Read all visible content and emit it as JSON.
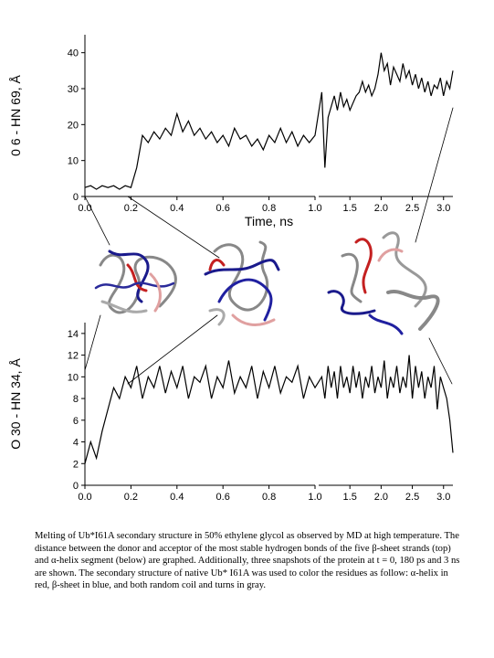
{
  "chart_data": [
    {
      "type": "line",
      "y_label": "0 6 - HN 69, Å",
      "x_label": "Time, ns",
      "color": "#000000",
      "xlim": [
        0,
        3.15
      ],
      "x_break": 1.0,
      "ylim": [
        0,
        45
      ],
      "xticks": [
        {
          "value": 0,
          "label": "0.0"
        },
        0.2,
        0.4,
        0.6,
        0.8,
        {
          "value": 1,
          "label": "1.0"
        },
        1.5,
        {
          "value": 2,
          "label": "2.0"
        },
        2.5,
        {
          "value": 3,
          "label": "3.0"
        }
      ],
      "yticks": [
        0,
        10,
        20,
        30,
        40
      ],
      "x": [
        0,
        0.025,
        0.05,
        0.075,
        0.1,
        0.125,
        0.15,
        0.175,
        0.2,
        0.225,
        0.25,
        0.275,
        0.3,
        0.325,
        0.35,
        0.375,
        0.4,
        0.425,
        0.45,
        0.475,
        0.5,
        0.525,
        0.55,
        0.575,
        0.6,
        0.625,
        0.65,
        0.675,
        0.7,
        0.725,
        0.75,
        0.775,
        0.8,
        0.825,
        0.85,
        0.875,
        0.9,
        0.925,
        0.95,
        0.975,
        1.0,
        1.05,
        1.1,
        1.15,
        1.2,
        1.25,
        1.3,
        1.35,
        1.4,
        1.45,
        1.5,
        1.55,
        1.6,
        1.65,
        1.7,
        1.75,
        1.8,
        1.85,
        1.9,
        1.95,
        2.0,
        2.05,
        2.1,
        2.15,
        2.2,
        2.25,
        2.3,
        2.35,
        2.4,
        2.45,
        2.5,
        2.55,
        2.6,
        2.65,
        2.7,
        2.75,
        2.8,
        2.85,
        2.9,
        2.95,
        3.0,
        3.05,
        3.1,
        3.15
      ],
      "values": [
        2.5,
        3,
        2,
        3,
        2.5,
        3,
        2,
        3,
        2.5,
        8,
        17,
        15,
        18,
        16,
        19,
        17,
        23,
        18,
        21,
        17,
        19,
        16,
        18,
        15,
        17,
        14,
        19,
        16,
        17,
        14,
        16,
        13,
        17,
        15,
        19,
        15,
        18,
        14,
        17,
        15,
        17,
        29,
        8,
        22,
        25,
        28,
        24,
        29,
        25,
        27,
        24,
        26,
        28,
        29,
        32,
        29,
        31,
        28,
        30,
        34,
        40,
        35,
        37,
        31,
        36,
        34,
        32,
        37,
        33,
        35,
        31,
        34,
        30,
        33,
        29,
        32,
        28,
        31,
        30,
        33,
        28,
        32,
        30,
        35
      ]
    },
    {
      "type": "line",
      "y_label": "O 30 - HN 34, Å",
      "color": "#000000",
      "xlim": [
        0,
        3.15
      ],
      "x_break": 1.0,
      "ylim": [
        0,
        15
      ],
      "xticks": [
        {
          "value": 0,
          "label": "0.0"
        },
        0.2,
        0.4,
        0.6,
        0.8,
        {
          "value": 1,
          "label": "1.0"
        },
        1.5,
        {
          "value": 2,
          "label": "2.0"
        },
        2.5,
        {
          "value": 3,
          "label": "3.0"
        }
      ],
      "yticks": [
        0,
        2,
        4,
        6,
        8,
        10,
        12,
        14
      ],
      "x": [
        0,
        0.025,
        0.05,
        0.075,
        0.1,
        0.125,
        0.15,
        0.175,
        0.2,
        0.225,
        0.25,
        0.275,
        0.3,
        0.325,
        0.35,
        0.375,
        0.4,
        0.425,
        0.45,
        0.475,
        0.5,
        0.525,
        0.55,
        0.575,
        0.6,
        0.625,
        0.65,
        0.675,
        0.7,
        0.725,
        0.75,
        0.775,
        0.8,
        0.825,
        0.85,
        0.875,
        0.9,
        0.925,
        0.95,
        0.975,
        1.0,
        1.05,
        1.1,
        1.15,
        1.2,
        1.25,
        1.3,
        1.35,
        1.4,
        1.45,
        1.5,
        1.55,
        1.6,
        1.65,
        1.7,
        1.75,
        1.8,
        1.85,
        1.9,
        1.95,
        2.0,
        2.05,
        2.1,
        2.15,
        2.2,
        2.25,
        2.3,
        2.35,
        2.4,
        2.45,
        2.5,
        2.55,
        2.6,
        2.65,
        2.7,
        2.75,
        2.8,
        2.85,
        2.9,
        2.95,
        3.0,
        3.05,
        3.1,
        3.15
      ],
      "values": [
        2,
        4,
        2.5,
        5,
        7,
        9,
        8,
        10,
        9,
        11,
        8,
        10,
        9,
        11,
        8.5,
        10.5,
        9,
        11,
        8,
        10,
        9.5,
        11,
        8,
        10,
        9,
        11.5,
        8.5,
        10,
        9,
        11,
        8,
        10.5,
        9,
        11,
        8.5,
        10,
        9.5,
        11,
        8,
        10,
        9,
        10,
        8,
        11,
        9,
        10.5,
        8,
        11,
        9,
        10,
        8.5,
        11,
        9,
        10.5,
        8,
        10,
        9,
        11,
        8.5,
        10,
        9,
        11.5,
        8,
        10,
        9,
        11,
        8.5,
        10,
        9,
        12,
        8,
        11,
        9,
        10.5,
        8,
        10,
        9,
        11,
        7,
        10,
        9,
        8,
        6,
        3
      ]
    }
  ],
  "caption": "Melting of Ub*I61A secondary structure in 50% ethylene glycol as observed by MD at high temperature. The distance between the donor and acceptor of the most stable hydrogen bonds of the five β-sheet strands (top) and α-helix segment (below) are graphed. Additionally, three snapshots of the protein at t = 0, 180 ps and 3 ns are shown.  The secondary structure of native Ub* I61A  was used to color the residues as follow: α-helix in red, β-sheet in blue, and both random coil and turns in gray."
}
